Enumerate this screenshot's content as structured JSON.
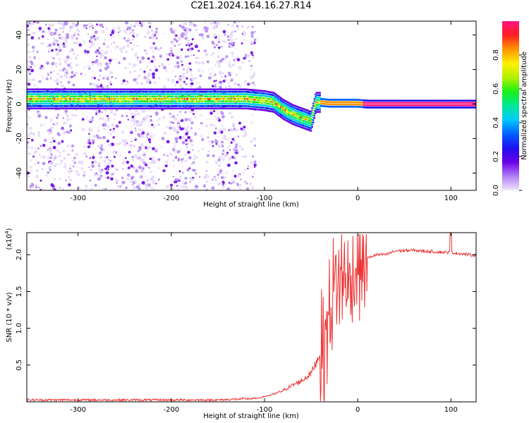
{
  "title": "C2E1.2024.164.16.27.R14",
  "chart_data": [
    {
      "type": "heatmap",
      "xlabel": "Height of straight line (km)",
      "ylabel": "Frequency (Hz)",
      "xlim": [
        -355,
        127
      ],
      "ylim": [
        -50,
        48
      ],
      "xticks": [
        -300,
        -200,
        -100,
        0,
        100
      ],
      "yticks": [
        -40,
        -20,
        0,
        20,
        40
      ],
      "colorbar": {
        "label": "Normalized spectral amplitude",
        "range": [
          0,
          1
        ],
        "ticks": [
          0.0,
          0.2,
          0.4,
          0.6,
          0.8
        ],
        "colormap": [
          "#f0e6fb",
          "#b07ff5",
          "#6a00e8",
          "#1d10f0",
          "#0060ff",
          "#00c8ff",
          "#00e896",
          "#18f018",
          "#b4f000",
          "#fff000",
          "#ff9600",
          "#ff2020",
          "#ff1480"
        ]
      },
      "ridge": {
        "x": [
          -355,
          -120,
          -100,
          -90,
          -80,
          -70,
          -60,
          -50,
          -45,
          -40,
          -30,
          -20,
          -10,
          0,
          10,
          127
        ],
        "frequency": [
          3,
          3,
          2,
          1,
          -3,
          -6,
          -8,
          -10,
          1,
          1,
          0.5,
          0.5,
          0.5,
          0.5,
          0,
          0
        ]
      }
    },
    {
      "type": "line",
      "xlabel": "Height of straight line (km)",
      "ylabel": "SNR (10 * v/v)",
      "y_multiplier": "(x10^4)",
      "xlim": [
        -355,
        127
      ],
      "ylim": [
        0,
        2.3
      ],
      "xticks": [
        -300,
        -200,
        -100,
        0,
        100
      ],
      "yticks": [
        0.5,
        1.0,
        1.5,
        2.0
      ],
      "color": "#ee3333",
      "series": [
        {
          "x": [
            -355,
            -150,
            -110,
            -100,
            -90,
            -80,
            -70,
            -60,
            -50,
            -40,
            -35,
            -30,
            -25,
            -20,
            -15,
            -10,
            -5,
            0,
            10,
            20,
            30,
            40,
            60,
            80,
            100,
            127
          ],
          "values": [
            0.02,
            0.02,
            0.04,
            0.07,
            0.1,
            0.15,
            0.22,
            0.28,
            0.38,
            0.65,
            0.85,
            1.25,
            1.55,
            1.55,
            1.7,
            1.55,
            1.65,
            1.9,
            1.95,
            2.0,
            2.0,
            2.05,
            2.06,
            2.04,
            2.03,
            1.99
          ]
        }
      ]
    }
  ]
}
